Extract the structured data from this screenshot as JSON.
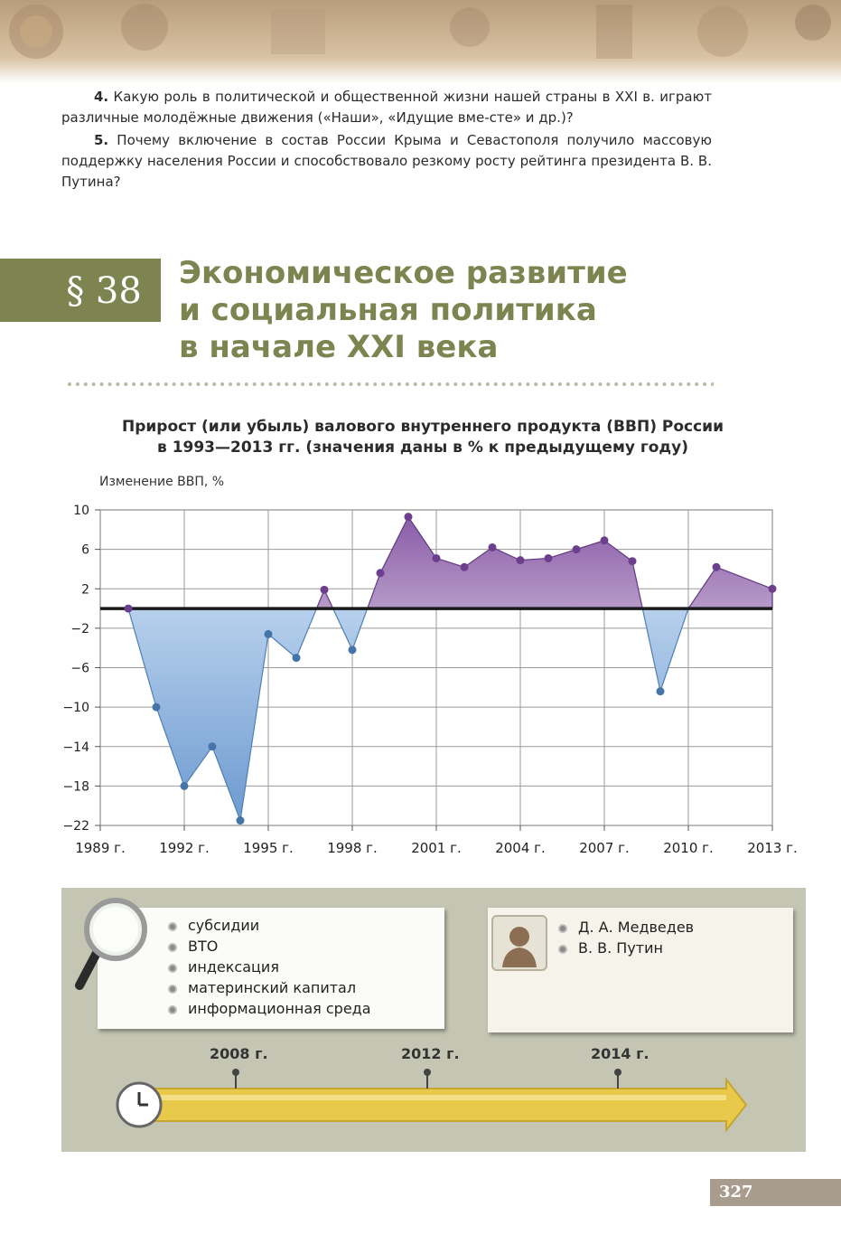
{
  "questions": [
    {
      "number": "4.",
      "text": "Какую роль в политической и общественной жизни нашей страны в XXI в. играют различные молодёжные движения («Наши», «Идущие вме-сте» и др.)?"
    },
    {
      "number": "5.",
      "text": "Почему включение в состав России Крыма и Севастополя получило массовую поддержку населения России и способствовало резкому росту рейтинга президента В. В. Путина?"
    }
  ],
  "section": {
    "number": "§ 38",
    "title_lines": [
      "Экономическое развитие",
      "и социальная политика",
      "в начале XXI века"
    ]
  },
  "chart_data": {
    "type": "area",
    "title_lines": [
      "Прирост (или убыль) валового внутреннего продукта (ВВП) России",
      "в 1993—2013 гг. (значения даны в % к предыдущему году)"
    ],
    "ylabel": "Изменение ВВП, %",
    "ylim": [
      -22,
      10
    ],
    "y_ticks": [
      "10",
      "6",
      "2",
      "−2",
      "−6",
      "−10",
      "−14",
      "−18",
      "−22"
    ],
    "x_ticks": [
      "1989 г.",
      "1992 г.",
      "1995 г.",
      "1998 г.",
      "2001 г.",
      "2004 г.",
      "2007 г.",
      "2010 г.",
      "2013 г."
    ],
    "x_range": [
      1989,
      2013
    ],
    "grid": true,
    "colors": {
      "positive": "#8a5ca8",
      "negative": "#6d9ad0",
      "points_pos": "#6b3f8e",
      "points_neg": "#4474a8"
    },
    "points": [
      {
        "x": 1990,
        "y": 0
      },
      {
        "x": 1991,
        "y": -10
      },
      {
        "x": 1992,
        "y": -18
      },
      {
        "x": 1993,
        "y": -14
      },
      {
        "x": 1994,
        "y": -21.5
      },
      {
        "x": 1995,
        "y": -2.6
      },
      {
        "x": 1996,
        "y": -5
      },
      {
        "x": 1997,
        "y": 1.9
      },
      {
        "x": 1998,
        "y": -4.2
      },
      {
        "x": 1999,
        "y": 3.6
      },
      {
        "x": 2000,
        "y": 9.3
      },
      {
        "x": 2001,
        "y": 5.1
      },
      {
        "x": 2002,
        "y": 4.2
      },
      {
        "x": 2003,
        "y": 6.2
      },
      {
        "x": 2004,
        "y": 4.9
      },
      {
        "x": 2005,
        "y": 5.1
      },
      {
        "x": 2006,
        "y": 6
      },
      {
        "x": 2007,
        "y": 6.9
      },
      {
        "x": 2008,
        "y": 4.8
      },
      {
        "x": 2009,
        "y": -8.4
      },
      {
        "x": 2011,
        "y": 4.2
      },
      {
        "x": 2013,
        "y": 2
      }
    ],
    "unmarked_points": [
      {
        "x": 2010,
        "y": 0
      }
    ]
  },
  "key_terms": [
    "субсидии",
    "ВТО",
    "индексация",
    "материнский капитал",
    "информационная среда"
  ],
  "persons": [
    "Д. А. Медведев",
    "В. В. Путин"
  ],
  "timeline": [
    "2008 г.",
    "2012 г.",
    "2014 г."
  ],
  "page_number": "327"
}
